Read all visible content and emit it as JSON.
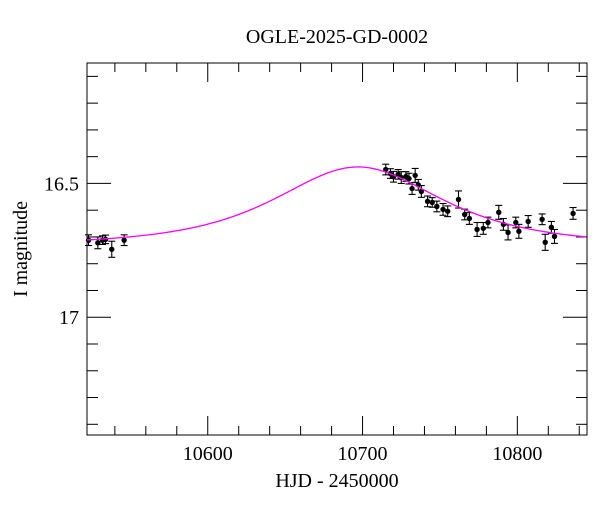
{
  "figure": {
    "title": "OGLE-2025-GD-0002",
    "xlabel": "HJD - 2450000",
    "ylabel": "I magnitude"
  },
  "chart_data": {
    "type": "scatter",
    "title": "OGLE-2025-GD-0002",
    "xlabel": "HJD - 2450000",
    "ylabel": "I magnitude",
    "grid": false,
    "legend": false,
    "x_axis": {
      "min": 10522,
      "max": 10845,
      "major_ticks": [
        {
          "value": 10600,
          "label": "10600"
        },
        {
          "value": 10700,
          "label": "10700"
        },
        {
          "value": 10800,
          "label": "10800"
        }
      ],
      "minor_tick_step": 20
    },
    "y_axis": {
      "min": 16.05,
      "max": 17.44,
      "inverted_magnitude_axis": true,
      "major_ticks": [
        {
          "value": 16.5,
          "label": "16.5"
        },
        {
          "value": 17.0,
          "label": "17"
        }
      ],
      "minor_tick_step": 0.1
    },
    "colors": {
      "model_curve": "#ff00ff",
      "data_points": "#000000",
      "frame": "#000000"
    },
    "model": {
      "type": "paczynski-microlensing",
      "t0": 10697,
      "tE": 63,
      "u0": 1.05,
      "baseline_mag": 16.73,
      "peak_mag": 16.44
    },
    "points_format": [
      "hjd_minus_2450000",
      "i_magnitude",
      "mag_error"
    ],
    "points": [
      [
        10523,
        16.712,
        0.02
      ],
      [
        10529,
        16.722,
        0.022
      ],
      [
        10532,
        16.712,
        0.016
      ],
      [
        10534,
        16.709,
        0.016
      ],
      [
        10538,
        16.746,
        0.03
      ],
      [
        10546,
        16.712,
        0.02
      ],
      [
        10715,
        16.448,
        0.02
      ],
      [
        10718,
        16.463,
        0.018
      ],
      [
        10720,
        16.475,
        0.02
      ],
      [
        10723,
        16.466,
        0.018
      ],
      [
        10725,
        16.478,
        0.022
      ],
      [
        10728,
        16.474,
        0.018
      ],
      [
        10730,
        16.482,
        0.02
      ],
      [
        10732,
        16.519,
        0.022
      ],
      [
        10734,
        16.47,
        0.026
      ],
      [
        10736,
        16.505,
        0.02
      ],
      [
        10738,
        16.53,
        0.022
      ],
      [
        10742,
        16.567,
        0.02
      ],
      [
        10745,
        16.571,
        0.018
      ],
      [
        10748,
        16.586,
        0.02
      ],
      [
        10752,
        16.597,
        0.022
      ],
      [
        10755,
        16.604,
        0.02
      ],
      [
        10762,
        16.56,
        0.032
      ],
      [
        10766,
        16.616,
        0.02
      ],
      [
        10769,
        16.631,
        0.022
      ],
      [
        10774,
        16.672,
        0.026
      ],
      [
        10778,
        16.668,
        0.022
      ],
      [
        10781,
        16.646,
        0.02
      ],
      [
        10788,
        16.608,
        0.026
      ],
      [
        10791,
        16.653,
        0.022
      ],
      [
        10794,
        16.683,
        0.028
      ],
      [
        10799,
        16.646,
        0.02
      ],
      [
        10801,
        16.679,
        0.026
      ],
      [
        10807,
        16.642,
        0.022
      ],
      [
        10816,
        16.634,
        0.02
      ],
      [
        10818,
        16.72,
        0.03
      ],
      [
        10822,
        16.664,
        0.022
      ],
      [
        10824,
        16.698,
        0.026
      ],
      [
        10836,
        16.612,
        0.022
      ]
    ]
  }
}
